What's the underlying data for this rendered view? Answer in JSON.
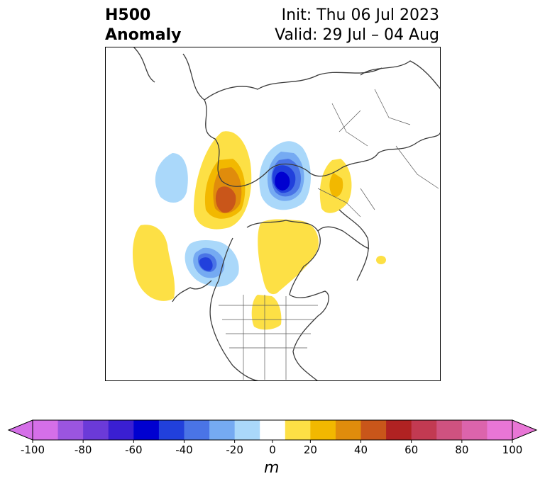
{
  "title": {
    "variable": "H500",
    "field": "Anomaly",
    "init": "Init: Thu 06 Jul 2023",
    "valid": "Valid: 29 Jul – 04 Aug"
  },
  "map": {
    "projection": "north polar stereographic",
    "anomaly_centers": [
      {
        "sign": "positive",
        "max_m": 50,
        "region": "Siberia / Arctic coast"
      },
      {
        "sign": "negative",
        "min_m": -60,
        "region": "Arctic Ocean / Laptev"
      },
      {
        "sign": "positive",
        "max_m": 20,
        "region": "Scandinavia"
      },
      {
        "sign": "negative",
        "min_m": -20,
        "region": "North Pacific (west)"
      },
      {
        "sign": "positive",
        "max_m": 20,
        "region": "North Pacific (south)"
      },
      {
        "sign": "negative",
        "min_m": -40,
        "region": "Gulf of Alaska"
      },
      {
        "sign": "positive",
        "max_m": 20,
        "region": "Canadian Arctic / Greenland"
      },
      {
        "sign": "positive",
        "max_m": 20,
        "region": "Central United States"
      }
    ]
  },
  "colorbar": {
    "levels": [
      -100,
      -90,
      -80,
      -70,
      -60,
      -50,
      -40,
      -30,
      -20,
      -10,
      10,
      20,
      30,
      40,
      50,
      60,
      70,
      80,
      90,
      100
    ],
    "colors": [
      "#d56fe8",
      "#9b55e0",
      "#6b3ad8",
      "#3a1fd2",
      "#0000d0",
      "#2140dc",
      "#4a74e6",
      "#75aaf2",
      "#aad8fa",
      "#ffffff",
      "#fde045",
      "#f2b800",
      "#e08c0c",
      "#c9561a",
      "#b02222",
      "#c23a52",
      "#cf5280",
      "#dc64ac",
      "#e876d6"
    ],
    "over_color": "#e876d6",
    "under_color": "#d56fe8",
    "tick_labels": [
      "-100",
      "-80",
      "-60",
      "-40",
      "-20",
      "0",
      "20",
      "40",
      "60",
      "80",
      "100"
    ],
    "unit": "m"
  }
}
